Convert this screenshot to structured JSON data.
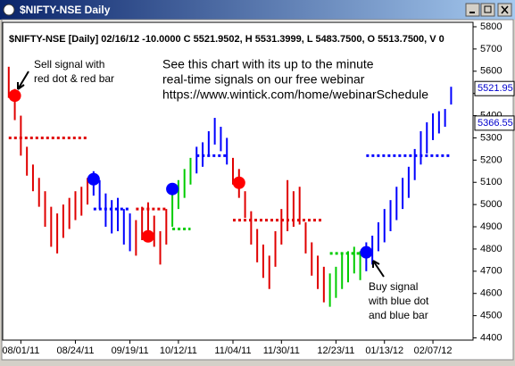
{
  "window_title": "$NIFTY-NSE Daily",
  "chart_data": {
    "type": "ohlc",
    "header": "$NIFTY-NSE [Daily] 02/16/12 -10.0000 C 5521.9502, H 5531.3999, L 5483.7500, O 5513.7500, V 0",
    "annotations": [
      "Sell signal with",
      "red dot & red bar",
      "See this chart with its up to the minute",
      "real-time signals on our free webinar",
      "https://www.wintick.com/home/webinarSchedule",
      "Buy signal",
      "with blue dot",
      "and blue bar"
    ],
    "high": [
      5620,
      5520,
      5400,
      5260,
      5180,
      5120,
      5060,
      4990,
      4960,
      5000,
      5030,
      5060,
      5080,
      5120,
      5150,
      5110,
      5050,
      5020,
      5030,
      4980,
      4960,
      4930,
      4990,
      5010,
      4950,
      4880,
      4980,
      5060,
      5110,
      5160,
      5210,
      5260,
      5280,
      5330,
      5390,
      5350,
      5300,
      5210,
      5160,
      5060,
      4970,
      4890,
      4820,
      4770,
      4880,
      4980,
      5110,
      5060,
      5080,
      4920,
      4830,
      4770,
      4720,
      4690,
      4720,
      4780,
      4790,
      4810,
      4790,
      4830,
      4860,
      4920,
      4980,
      5020,
      5080,
      5120,
      5170,
      5250,
      5330,
      5370,
      5410,
      5420,
      5430,
      5530
    ],
    "low": [
      5480,
      5380,
      5220,
      5130,
      5060,
      4990,
      4900,
      4810,
      4780,
      4850,
      4890,
      4930,
      4950,
      5000,
      5040,
      4980,
      4900,
      4870,
      4880,
      4820,
      4790,
      4770,
      4840,
      4880,
      4810,
      4730,
      4820,
      4900,
      4980,
      5030,
      5090,
      5140,
      5170,
      5220,
      5270,
      5240,
      5180,
      5090,
      5030,
      4940,
      4820,
      4740,
      4670,
      4620,
      4720,
      4820,
      4880,
      4900,
      4910,
      4780,
      4680,
      4620,
      4560,
      4540,
      4580,
      4620,
      4650,
      4690,
      4660,
      4700,
      4730,
      4790,
      4830,
      4880,
      4930,
      4980,
      5030,
      5110,
      5180,
      5230,
      5290,
      5320,
      5350,
      5450
    ],
    "segments": [
      {
        "start": 0,
        "end": 13,
        "color": "#e00000",
        "stop": 5300
      },
      {
        "start": 14,
        "end": 20,
        "color": "#0000ff",
        "stop": 4980
      },
      {
        "start": 21,
        "end": 26,
        "color": "#e00000",
        "stop": 4980
      },
      {
        "start": 27,
        "end": 30,
        "color": "#00cc00",
        "stop": 4890
      },
      {
        "start": 31,
        "end": 36,
        "color": "#0000ff",
        "stop": 5220
      },
      {
        "start": 37,
        "end": 52,
        "color": "#e00000",
        "stop": 4930
      },
      {
        "start": 53,
        "end": 58,
        "color": "#00cc00",
        "stop": 4780
      },
      {
        "start": 59,
        "end": 73,
        "color": "#0000ff",
        "stop": 5220
      }
    ],
    "signals": [
      {
        "index": 1,
        "value": 5490,
        "color": "#ff0000"
      },
      {
        "index": 14,
        "value": 5114,
        "color": "#0000ff"
      },
      {
        "index": 23,
        "value": 4857,
        "color": "#ff0000"
      },
      {
        "index": 27,
        "value": 5070,
        "color": "#0000ff"
      },
      {
        "index": 38,
        "value": 5098,
        "color": "#ff0000"
      },
      {
        "index": 59,
        "value": 4785,
        "color": "#0000ff"
      }
    ],
    "last_prices": [
      5521.95,
      5366.55
    ],
    "xlim": [
      -1,
      75
    ],
    "xticks": [
      {
        "value": 2,
        "label": "08/01/11"
      },
      {
        "value": 11,
        "label": "08/24/11"
      },
      {
        "value": 20,
        "label": "09/19/11"
      },
      {
        "value": 28,
        "label": "10/12/11"
      },
      {
        "value": 37,
        "label": "11/04/11"
      },
      {
        "value": 45,
        "label": "11/30/11"
      },
      {
        "value": 54,
        "label": "12/23/11"
      },
      {
        "value": 62,
        "label": "01/13/12"
      },
      {
        "value": 70,
        "label": "02/07/12"
      }
    ],
    "ylim": [
      4390,
      5820
    ],
    "yticks": [
      4400,
      4500,
      4600,
      4700,
      4800,
      4900,
      5000,
      5100,
      5200,
      5300,
      5400,
      5500,
      5600,
      5700,
      5800
    ]
  }
}
